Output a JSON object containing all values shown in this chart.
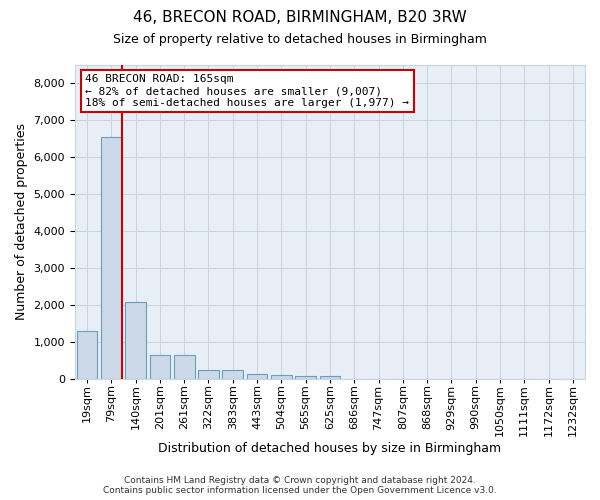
{
  "title_line1": "46, BRECON ROAD, BIRMINGHAM, B20 3RW",
  "title_line2": "Size of property relative to detached houses in Birmingham",
  "xlabel": "Distribution of detached houses by size in Birmingham",
  "ylabel": "Number of detached properties",
  "bar_color": "#ccd9e8",
  "bar_edge_color": "#6a9ec0",
  "grid_color": "#c8d4e0",
  "background_color": "#e8eef5",
  "annotation_box_color": "#cc0000",
  "vline_color": "#cc0000",
  "categories": [
    "19sqm",
    "79sqm",
    "140sqm",
    "201sqm",
    "261sqm",
    "322sqm",
    "383sqm",
    "443sqm",
    "504sqm",
    "565sqm",
    "625sqm",
    "686sqm",
    "747sqm",
    "807sqm",
    "868sqm",
    "929sqm",
    "990sqm",
    "1050sqm",
    "1111sqm",
    "1172sqm",
    "1232sqm"
  ],
  "values": [
    1300,
    6550,
    2080,
    660,
    640,
    250,
    230,
    130,
    95,
    80,
    80,
    0,
    0,
    0,
    0,
    0,
    0,
    0,
    0,
    0,
    0
  ],
  "ylim": [
    0,
    8500
  ],
  "yticks": [
    0,
    1000,
    2000,
    3000,
    4000,
    5000,
    6000,
    7000,
    8000
  ],
  "annotation_text_line1": "46 BRECON ROAD: 165sqm",
  "annotation_text_line2": "← 82% of detached houses are smaller (9,007)",
  "annotation_text_line3": "18% of semi-detached houses are larger (1,977) →",
  "footer_line1": "Contains HM Land Registry data © Crown copyright and database right 2024.",
  "footer_line2": "Contains public sector information licensed under the Open Government Licence v3.0.",
  "vline_bar_index": 1,
  "title_fontsize": 11,
  "subtitle_fontsize": 9,
  "ylabel_fontsize": 9,
  "xlabel_fontsize": 9,
  "tick_fontsize": 8,
  "footer_fontsize": 6.5,
  "annot_fontsize": 8
}
